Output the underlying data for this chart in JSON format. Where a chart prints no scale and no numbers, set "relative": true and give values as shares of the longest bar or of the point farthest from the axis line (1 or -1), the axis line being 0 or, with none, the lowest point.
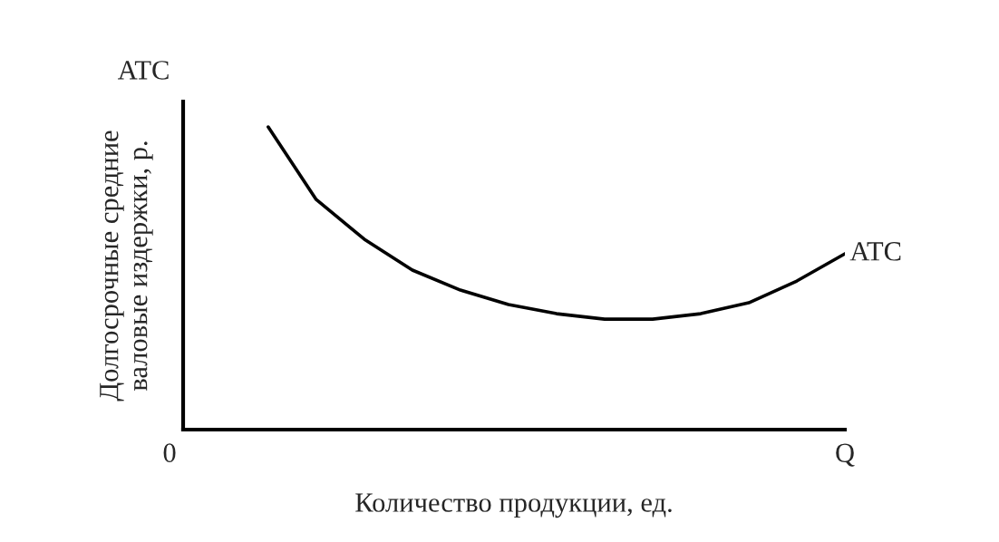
{
  "chart_data": {
    "type": "line",
    "relative": true,
    "tick_labels": false,
    "grid": false,
    "legend": false,
    "xlabel": "Количество продукции, ед.",
    "ylabel": "Долгосрочные средние\nваловые издержки, р.",
    "annotations": [
      "ATC",
      "0",
      "Q"
    ],
    "categories": [
      null,
      null,
      null,
      null,
      null,
      null,
      null,
      null,
      null,
      null,
      null,
      null,
      null
    ],
    "series": [
      {
        "name": "ATC",
        "color": "#000000",
        "values": [
          1,
          0.76,
          0.629,
          0.527,
          0.461,
          0.413,
          0.383,
          0.365,
          0.365,
          0.383,
          0.419,
          0.491,
          0.581
        ]
      }
    ]
  }
}
